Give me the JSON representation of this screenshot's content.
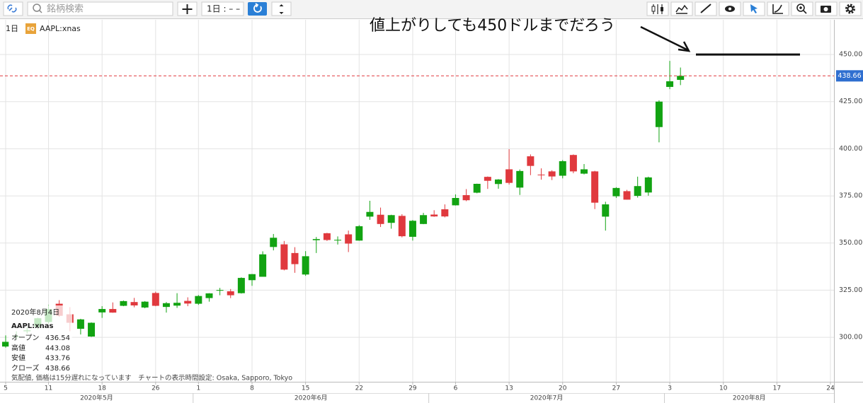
{
  "toolbar": {
    "search_placeholder": "銘柄検索",
    "interval": "1日 : – –"
  },
  "chart_data": {
    "type": "candlestick",
    "interval_label": "1日",
    "badge": "EQ",
    "symbol": "AAPL:xnas",
    "x": [
      "2020-05-05",
      "2020-05-06",
      "2020-05-07",
      "2020-05-08",
      "2020-05-11",
      "2020-05-12",
      "2020-05-13",
      "2020-05-14",
      "2020-05-15",
      "2020-05-18",
      "2020-05-19",
      "2020-05-20",
      "2020-05-21",
      "2020-05-22",
      "2020-05-26",
      "2020-05-27",
      "2020-05-28",
      "2020-05-29",
      "2020-06-01",
      "2020-06-02",
      "2020-06-03",
      "2020-06-04",
      "2020-06-05",
      "2020-06-08",
      "2020-06-09",
      "2020-06-10",
      "2020-06-11",
      "2020-06-12",
      "2020-06-15",
      "2020-06-16",
      "2020-06-17",
      "2020-06-18",
      "2020-06-19",
      "2020-06-22",
      "2020-06-23",
      "2020-06-24",
      "2020-06-25",
      "2020-06-26",
      "2020-06-29",
      "2020-06-30",
      "2020-07-01",
      "2020-07-02",
      "2020-07-06",
      "2020-07-07",
      "2020-07-08",
      "2020-07-09",
      "2020-07-10",
      "2020-07-13",
      "2020-07-14",
      "2020-07-15",
      "2020-07-16",
      "2020-07-17",
      "2020-07-20",
      "2020-07-21",
      "2020-07-22",
      "2020-07-23",
      "2020-07-24",
      "2020-07-27",
      "2020-07-28",
      "2020-07-29",
      "2020-07-30",
      "2020-07-31",
      "2020-08-03",
      "2020-08-04"
    ],
    "open": [
      295.1,
      300.5,
      303.2,
      305.6,
      308.1,
      317.8,
      312.2,
      304.5,
      300.4,
      313.2,
      315.0,
      316.7,
      318.7,
      315.8,
      323.5,
      316.1,
      316.8,
      319.3,
      317.8,
      320.8,
      324.7,
      324.4,
      323.4,
      330.3,
      332.1,
      347.9,
      349.3,
      344.7,
      333.3,
      351.5,
      355.2,
      351.4,
      354.6,
      351.3,
      364.0,
      365.0,
      360.7,
      364.4,
      353.3,
      360.1,
      365.1,
      367.9,
      370.0,
      375.4,
      376.7,
      385.1,
      381.3,
      389.1,
      379.4,
      396.0,
      386.3,
      388.0,
      385.7,
      396.7,
      386.8,
      388.0,
      364.0,
      374.8,
      377.5,
      375.0,
      376.8,
      411.5,
      432.8,
      436.54
    ],
    "high": [
      301.0,
      303.2,
      305.2,
      310.4,
      317.1,
      319.7,
      316.0,
      309.8,
      307.9,
      316.5,
      318.5,
      319.5,
      320.9,
      319.2,
      324.2,
      318.7,
      323.4,
      321.2,
      322.4,
      323.4,
      326.2,
      325.6,
      331.8,
      333.6,
      345.6,
      354.8,
      351.1,
      347.8,
      345.7,
      353.2,
      355.4,
      353.5,
      356.6,
      359.5,
      372.4,
      368.8,
      365.0,
      365.3,
      362.2,
      366.0,
      367.4,
      370.5,
      375.8,
      378.6,
      381.5,
      385.3,
      383.9,
      399.8,
      389.0,
      397.0,
      389.6,
      388.6,
      394.0,
      397.0,
      391.9,
      388.3,
      371.9,
      379.6,
      378.2,
      385.2,
      385.2,
      425.7,
      446.6,
      443.08
    ],
    "low": [
      294.5,
      298.9,
      302.0,
      304.3,
      307.2,
      310.9,
      303.2,
      301.5,
      300.2,
      310.3,
      313.0,
      316.5,
      315.9,
      315.4,
      316.5,
      313.1,
      315.6,
      316.5,
      317.2,
      318.9,
      322.3,
      320.8,
      323.2,
      327.3,
      332.6,
      346.1,
      335.5,
      334.2,
      332.6,
      344.7,
      351.1,
      349.2,
      345.2,
      351.2,
      362.3,
      358.5,
      357.6,
      353.0,
      351.3,
      360.0,
      363.9,
      363.6,
      369.9,
      372.2,
      376.4,
      378.7,
      378.8,
      381.0,
      375.5,
      386.0,
      383.6,
      383.4,
      384.3,
      387.0,
      386.4,
      368.0,
      356.6,
      373.9,
      373.0,
      374.1,
      375.1,
      403.4,
      431.6,
      433.76
    ],
    "close": [
      297.6,
      300.6,
      303.7,
      310.1,
      315.0,
      311.4,
      307.7,
      309.5,
      307.7,
      315.0,
      313.1,
      319.2,
      316.9,
      318.9,
      316.7,
      318.1,
      318.3,
      317.9,
      321.9,
      323.3,
      325.1,
      322.3,
      331.5,
      333.5,
      344.0,
      352.8,
      335.9,
      338.8,
      343.0,
      352.1,
      351.6,
      351.7,
      349.7,
      358.9,
      366.5,
      360.1,
      364.8,
      353.6,
      361.8,
      364.8,
      364.1,
      364.1,
      373.9,
      372.7,
      381.4,
      383.0,
      383.7,
      381.9,
      388.2,
      390.9,
      386.1,
      385.3,
      393.4,
      388.0,
      389.1,
      371.4,
      370.5,
      379.2,
      373.0,
      380.2,
      384.8,
      425.0,
      435.8,
      438.66
    ],
    "up_color": "#12a312",
    "down_color": "#e0393e",
    "ylim": [
      276.4,
      468.4
    ],
    "yticks": [
      {
        "value": 300,
        "label": "300.00"
      },
      {
        "value": 325,
        "label": "325.00"
      },
      {
        "value": 350,
        "label": "350.00"
      },
      {
        "value": 375,
        "label": "375.00"
      },
      {
        "value": 400,
        "label": "400.00"
      },
      {
        "value": 425,
        "label": "425.00"
      },
      {
        "value": 450,
        "label": "450.00"
      }
    ],
    "xticks": [
      {
        "value": "2020-05-05",
        "label": "5"
      },
      {
        "value": "2020-05-11",
        "label": "11"
      },
      {
        "value": "2020-05-18",
        "label": "18"
      },
      {
        "value": "2020-05-26",
        "label": "26"
      },
      {
        "value": "2020-06-01",
        "label": "1"
      },
      {
        "value": "2020-06-08",
        "label": "8"
      },
      {
        "value": "2020-06-15",
        "label": "15"
      },
      {
        "value": "2020-06-22",
        "label": "22"
      },
      {
        "value": "2020-06-29",
        "label": "29"
      },
      {
        "value": "2020-07-06",
        "label": "6"
      },
      {
        "value": "2020-07-13",
        "label": "13"
      },
      {
        "value": "2020-07-20",
        "label": "20"
      },
      {
        "value": "2020-07-27",
        "label": "27"
      },
      {
        "value": "2020-08-03",
        "label": "3"
      },
      {
        "value": "2020-08-10",
        "label": "10"
      },
      {
        "value": "2020-08-17",
        "label": "17"
      },
      {
        "value": "2020-08-24",
        "label": "24"
      }
    ],
    "month_labels": [
      {
        "value": "2020-05",
        "label": "2020年5月"
      },
      {
        "value": "2020-06",
        "label": "2020年6月"
      },
      {
        "value": "2020-07",
        "label": "2020年7月"
      },
      {
        "value": "2020-08",
        "label": "2020年8月"
      }
    ],
    "grid": true,
    "last_price": 438.66,
    "last_price_color": "#e0393e",
    "annotation": {
      "text": "値上がりしても450ドルまでだろう",
      "level": 450
    },
    "tooltip": {
      "date": "2020年8月4日",
      "symbol": "AAPL:xnas",
      "rows": [
        {
          "label": "オープン",
          "value": 436.54
        },
        {
          "label": "高値",
          "value": 443.08
        },
        {
          "label": "安値",
          "value": 433.76
        },
        {
          "label": "クローズ",
          "value": 438.66
        }
      ]
    },
    "note": "気配値, 価格は15分遅れになっています　チャートの表示時間設定: Osaka, Sapporo, Tokyo"
  }
}
